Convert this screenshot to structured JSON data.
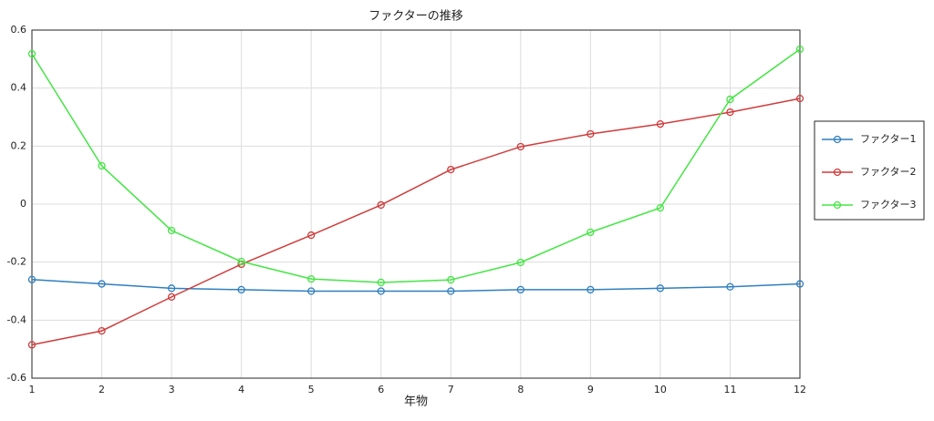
{
  "chart_data": {
    "type": "line",
    "title": "ファクターの推移",
    "x_label": "年物",
    "x": [
      1,
      2,
      3,
      4,
      5,
      6,
      7,
      8,
      9,
      10,
      11,
      12
    ],
    "xlim": [
      1,
      12
    ],
    "xticks": [
      1,
      2,
      3,
      4,
      5,
      6,
      7,
      8,
      9,
      10,
      11,
      12
    ],
    "ylim": [
      -0.6,
      0.6
    ],
    "yticks": [
      -0.6,
      -0.4,
      -0.2,
      0,
      0.2,
      0.4,
      0.6
    ],
    "grid": true,
    "legend": "right",
    "series": [
      {
        "name": "ファクター1",
        "color": "#2f7fbf",
        "values": [
          -0.26,
          -0.275,
          -0.29,
          -0.295,
          -0.3,
          -0.3,
          -0.3,
          -0.295,
          -0.295,
          -0.29,
          -0.285,
          -0.275
        ]
      },
      {
        "name": "ファクター2",
        "color": "#d03c3c",
        "values": [
          -0.485,
          -0.437,
          -0.32,
          -0.207,
          -0.107,
          -0.003,
          0.119,
          0.198,
          0.242,
          0.276,
          0.317,
          0.364
        ]
      },
      {
        "name": "ファクター3",
        "color": "#44e644",
        "values": [
          0.518,
          0.132,
          -0.091,
          -0.198,
          -0.258,
          -0.27,
          -0.261,
          -0.201,
          -0.097,
          -0.013,
          0.361,
          0.534
        ]
      }
    ]
  }
}
